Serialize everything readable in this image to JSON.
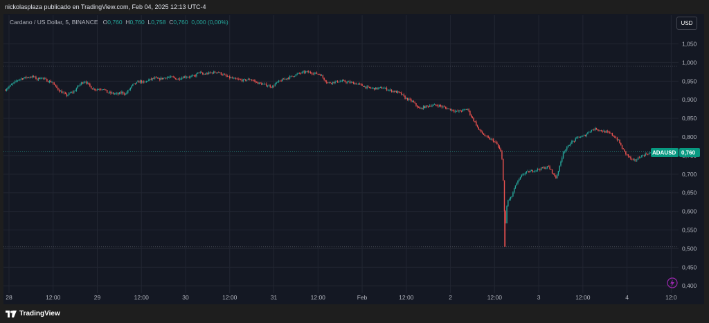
{
  "header": {
    "publisher_line": "nickolasplaza publicado en TradingView.com, Feb 04, 2025 12:13 UTC-4"
  },
  "legend": {
    "symbol": "Cardano / US Dollar, 5, BINANCE",
    "o_label": "O",
    "o_value": "0,760",
    "h_label": "H",
    "h_value": "0,760",
    "l_label": "L",
    "l_value": "0,758",
    "c_label": "C",
    "c_value": "0,760",
    "change": "0,000 (0,00%)"
  },
  "controls": {
    "currency_button": "USD"
  },
  "price_badge": {
    "ticker": "ADAUSD",
    "price": "0,760"
  },
  "footer": {
    "brand": "TradingView"
  },
  "colors": {
    "up": "#26a69a",
    "down": "#ef5350",
    "background": "#141823",
    "grid": "#222632",
    "badge": "#089981"
  },
  "chart_data": {
    "type": "candlestick",
    "interval": "5",
    "y_tick_labels": [
      "1,050",
      "1,000",
      "0,950",
      "0,900",
      "0,850",
      "0,800",
      "0,750",
      "0,700",
      "0,650",
      "0,600",
      "0,550",
      "0,500",
      "0,450",
      "0,400"
    ],
    "y_tick_values": [
      1.05,
      1.0,
      0.95,
      0.9,
      0.85,
      0.8,
      0.75,
      0.7,
      0.65,
      0.6,
      0.55,
      0.5,
      0.45,
      0.4
    ],
    "ylim": [
      0.38,
      1.09
    ],
    "x_tick_labels": [
      "28",
      "12:00",
      "29",
      "12:00",
      "30",
      "12:00",
      "31",
      "12:00",
      "Feb",
      "12:00",
      "2",
      "12:00",
      "3",
      "12:00",
      "4",
      "12:0"
    ],
    "x_tick_hours": [
      0,
      12,
      24,
      36,
      48,
      60,
      72,
      84,
      96,
      108,
      120,
      132,
      144,
      156,
      168,
      180
    ],
    "xlim_hours": [
      -1.5,
      182
    ],
    "horizontal_lines": [
      0.99,
      0.76,
      0.505
    ],
    "last_price": 0.76,
    "price_path": [
      [
        -1,
        0.925
      ],
      [
        1,
        0.94
      ],
      [
        3,
        0.955
      ],
      [
        5,
        0.96
      ],
      [
        7,
        0.962
      ],
      [
        8,
        0.955
      ],
      [
        9,
        0.96
      ],
      [
        10,
        0.955
      ],
      [
        11,
        0.95
      ],
      [
        12,
        0.948
      ],
      [
        13,
        0.935
      ],
      [
        14,
        0.925
      ],
      [
        15,
        0.918
      ],
      [
        16,
        0.912
      ],
      [
        17,
        0.918
      ],
      [
        18,
        0.922
      ],
      [
        19,
        0.935
      ],
      [
        20,
        0.945
      ],
      [
        21,
        0.95
      ],
      [
        22,
        0.94
      ],
      [
        23,
        0.93
      ],
      [
        24,
        0.928
      ],
      [
        26,
        0.93
      ],
      [
        27,
        0.92
      ],
      [
        28,
        0.918
      ],
      [
        30,
        0.915
      ],
      [
        31,
        0.92
      ],
      [
        32,
        0.915
      ],
      [
        34,
        0.94
      ],
      [
        36,
        0.95
      ],
      [
        37,
        0.945
      ],
      [
        38,
        0.952
      ],
      [
        40,
        0.958
      ],
      [
        41,
        0.955
      ],
      [
        43,
        0.96
      ],
      [
        45,
        0.96
      ],
      [
        46,
        0.955
      ],
      [
        48,
        0.962
      ],
      [
        50,
        0.962
      ],
      [
        51,
        0.965
      ],
      [
        52,
        0.975
      ],
      [
        53,
        0.968
      ],
      [
        55,
        0.972
      ],
      [
        57,
        0.975
      ],
      [
        58,
        0.97
      ],
      [
        59,
        0.965
      ],
      [
        60,
        0.96
      ],
      [
        62,
        0.955
      ],
      [
        64,
        0.952
      ],
      [
        66,
        0.955
      ],
      [
        68,
        0.945
      ],
      [
        70,
        0.94
      ],
      [
        72,
        0.935
      ],
      [
        73,
        0.945
      ],
      [
        75,
        0.955
      ],
      [
        77,
        0.962
      ],
      [
        79,
        0.97
      ],
      [
        81,
        0.975
      ],
      [
        83,
        0.972
      ],
      [
        85,
        0.968
      ],
      [
        86,
        0.955
      ],
      [
        87,
        0.945
      ],
      [
        89,
        0.948
      ],
      [
        91,
        0.95
      ],
      [
        92,
        0.948
      ],
      [
        94,
        0.945
      ],
      [
        96,
        0.94
      ],
      [
        97,
        0.935
      ],
      [
        98,
        0.932
      ],
      [
        100,
        0.93
      ],
      [
        102,
        0.932
      ],
      [
        104,
        0.925
      ],
      [
        106,
        0.92
      ],
      [
        107,
        0.915
      ],
      [
        108,
        0.905
      ],
      [
        110,
        0.895
      ],
      [
        111,
        0.885
      ],
      [
        112,
        0.875
      ],
      [
        113,
        0.88
      ],
      [
        115,
        0.885
      ],
      [
        117,
        0.885
      ],
      [
        119,
        0.878
      ],
      [
        121,
        0.872
      ],
      [
        122,
        0.868
      ],
      [
        124,
        0.872
      ],
      [
        125,
        0.875
      ],
      [
        126,
        0.855
      ],
      [
        127,
        0.84
      ],
      [
        128,
        0.82
      ],
      [
        129,
        0.81
      ],
      [
        130,
        0.8
      ],
      [
        131,
        0.795
      ],
      [
        132,
        0.79
      ],
      [
        133,
        0.78
      ],
      [
        134,
        0.76
      ],
      [
        134.5,
        0.73
      ],
      [
        135,
        0.6
      ],
      [
        135.3,
        0.56
      ],
      [
        135.6,
        0.61
      ],
      [
        136,
        0.63
      ],
      [
        137,
        0.64
      ],
      [
        138,
        0.67
      ],
      [
        139,
        0.685
      ],
      [
        140,
        0.7
      ],
      [
        141,
        0.705
      ],
      [
        143,
        0.71
      ],
      [
        145,
        0.715
      ],
      [
        147,
        0.72
      ],
      [
        148,
        0.705
      ],
      [
        149,
        0.69
      ],
      [
        150,
        0.72
      ],
      [
        151,
        0.76
      ],
      [
        152,
        0.77
      ],
      [
        153,
        0.785
      ],
      [
        154,
        0.79
      ],
      [
        155,
        0.8
      ],
      [
        156,
        0.8
      ],
      [
        157,
        0.805
      ],
      [
        158,
        0.815
      ],
      [
        159,
        0.82
      ],
      [
        160,
        0.822
      ],
      [
        161,
        0.818
      ],
      [
        162,
        0.815
      ],
      [
        163,
        0.812
      ],
      [
        164,
        0.808
      ],
      [
        165,
        0.8
      ],
      [
        166,
        0.79
      ],
      [
        167,
        0.77
      ],
      [
        168,
        0.755
      ],
      [
        169,
        0.745
      ],
      [
        170,
        0.735
      ],
      [
        171,
        0.74
      ],
      [
        172,
        0.748
      ],
      [
        173,
        0.752
      ],
      [
        174,
        0.756
      ],
      [
        175,
        0.758
      ],
      [
        176,
        0.76
      ],
      [
        177,
        0.76
      ]
    ]
  }
}
